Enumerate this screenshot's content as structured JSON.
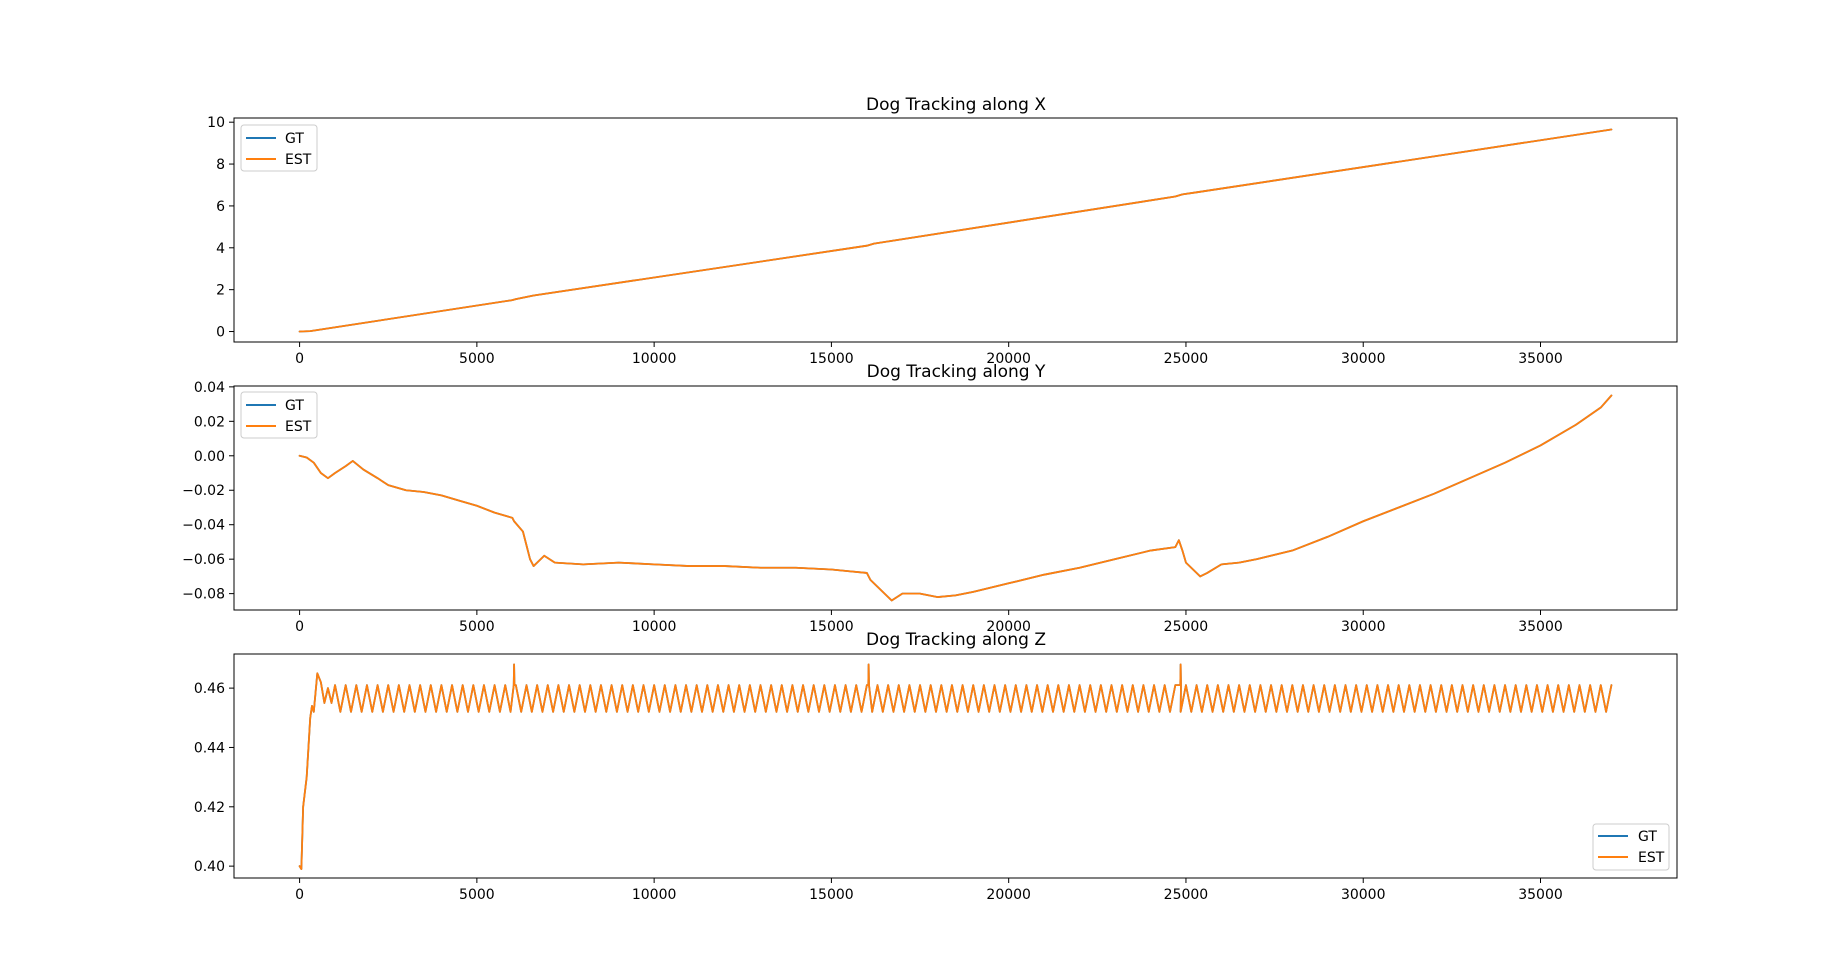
{
  "chart_data": [
    {
      "type": "line",
      "title": "Dog Tracking along X",
      "xlabel": "",
      "ylabel": "",
      "xlim": [
        -1850,
        38850
      ],
      "ylim": [
        -0.5,
        10.2
      ],
      "xticks": [
        0,
        5000,
        10000,
        15000,
        20000,
        25000,
        30000,
        35000
      ],
      "yticks": [
        0,
        2,
        4,
        6,
        8,
        10
      ],
      "grid": false,
      "legend": "upper-left",
      "series": [
        {
          "name": "GT",
          "color": "#1f77b4",
          "x": [
            0,
            300,
            6000,
            6100,
            6600,
            16000,
            16200,
            16700,
            24700,
            24900,
            25300,
            37000
          ],
          "y": [
            0.0,
            0.02,
            1.5,
            1.55,
            1.72,
            4.1,
            4.2,
            4.33,
            6.45,
            6.55,
            6.65,
            9.65
          ]
        },
        {
          "name": "EST",
          "color": "#ff7f0e",
          "x": [
            0,
            300,
            6000,
            6100,
            6600,
            16000,
            16200,
            16700,
            24700,
            24900,
            25300,
            37000
          ],
          "y": [
            0.0,
            0.02,
            1.5,
            1.55,
            1.72,
            4.1,
            4.2,
            4.33,
            6.45,
            6.55,
            6.65,
            9.65
          ]
        }
      ]
    },
    {
      "type": "line",
      "title": "Dog Tracking along Y",
      "xlabel": "",
      "ylabel": "",
      "xlim": [
        -1850,
        38850
      ],
      "ylim": [
        -0.0895,
        0.0405
      ],
      "xticks": [
        0,
        5000,
        10000,
        15000,
        20000,
        25000,
        30000,
        35000
      ],
      "yticks": [
        -0.08,
        -0.06,
        -0.04,
        -0.02,
        0.0,
        0.02,
        0.04
      ],
      "ytick_labels": [
        "−0.08",
        "−0.06",
        "−0.04",
        "−0.02",
        "0.00",
        "0.02",
        "0.04"
      ],
      "grid": false,
      "legend": "upper-left",
      "series": [
        {
          "name": "GT",
          "color": "#1f77b4",
          "x": [
            0,
            200,
            400,
            600,
            800,
            1000,
            1300,
            1500,
            1800,
            2200,
            2500,
            3000,
            3500,
            4000,
            4500,
            5000,
            5500,
            6000,
            6050,
            6300,
            6400,
            6500,
            6600,
            6700,
            6900,
            7200,
            8000,
            9000,
            10000,
            11000,
            12000,
            13000,
            14000,
            15000,
            15500,
            16000,
            16100,
            16300,
            16500,
            16700,
            17000,
            17500,
            18000,
            18500,
            19000,
            20000,
            21000,
            22000,
            23000,
            24000,
            24700,
            24800,
            24900,
            25000,
            25200,
            25400,
            25600,
            26000,
            26500,
            27000,
            28000,
            29000,
            30000,
            31000,
            32000,
            33000,
            34000,
            35000,
            36000,
            36700,
            37000
          ],
          "y": [
            0.0,
            -0.001,
            -0.004,
            -0.01,
            -0.013,
            -0.01,
            -0.006,
            -0.003,
            -0.008,
            -0.013,
            -0.017,
            -0.02,
            -0.021,
            -0.023,
            -0.026,
            -0.029,
            -0.033,
            -0.036,
            -0.038,
            -0.044,
            -0.052,
            -0.06,
            -0.064,
            -0.062,
            -0.058,
            -0.062,
            -0.063,
            -0.062,
            -0.063,
            -0.064,
            -0.064,
            -0.065,
            -0.065,
            -0.066,
            -0.067,
            -0.068,
            -0.072,
            -0.076,
            -0.08,
            -0.084,
            -0.08,
            -0.08,
            -0.082,
            -0.081,
            -0.079,
            -0.074,
            -0.069,
            -0.065,
            -0.06,
            -0.055,
            -0.053,
            -0.049,
            -0.055,
            -0.062,
            -0.066,
            -0.07,
            -0.068,
            -0.063,
            -0.062,
            -0.06,
            -0.055,
            -0.047,
            -0.038,
            -0.03,
            -0.022,
            -0.013,
            -0.004,
            0.006,
            0.018,
            0.028,
            0.035
          ]
        },
        {
          "name": "EST",
          "color": "#ff7f0e",
          "x": [
            0,
            200,
            400,
            600,
            800,
            1000,
            1300,
            1500,
            1800,
            2200,
            2500,
            3000,
            3500,
            4000,
            4500,
            5000,
            5500,
            6000,
            6050,
            6300,
            6400,
            6500,
            6600,
            6700,
            6900,
            7200,
            8000,
            9000,
            10000,
            11000,
            12000,
            13000,
            14000,
            15000,
            15500,
            16000,
            16100,
            16300,
            16500,
            16700,
            17000,
            17500,
            18000,
            18500,
            19000,
            20000,
            21000,
            22000,
            23000,
            24000,
            24700,
            24800,
            24900,
            25000,
            25200,
            25400,
            25600,
            26000,
            26500,
            27000,
            28000,
            29000,
            30000,
            31000,
            32000,
            33000,
            34000,
            35000,
            36000,
            36700,
            37000
          ],
          "y": [
            0.0,
            -0.001,
            -0.004,
            -0.01,
            -0.013,
            -0.01,
            -0.006,
            -0.003,
            -0.008,
            -0.013,
            -0.017,
            -0.02,
            -0.021,
            -0.023,
            -0.026,
            -0.029,
            -0.033,
            -0.036,
            -0.038,
            -0.044,
            -0.052,
            -0.06,
            -0.064,
            -0.062,
            -0.058,
            -0.062,
            -0.063,
            -0.062,
            -0.063,
            -0.064,
            -0.064,
            -0.065,
            -0.065,
            -0.066,
            -0.067,
            -0.068,
            -0.072,
            -0.076,
            -0.08,
            -0.084,
            -0.08,
            -0.08,
            -0.082,
            -0.081,
            -0.079,
            -0.074,
            -0.069,
            -0.065,
            -0.06,
            -0.055,
            -0.053,
            -0.049,
            -0.055,
            -0.062,
            -0.066,
            -0.07,
            -0.068,
            -0.063,
            -0.062,
            -0.06,
            -0.055,
            -0.047,
            -0.038,
            -0.03,
            -0.022,
            -0.013,
            -0.004,
            0.006,
            0.018,
            0.028,
            0.035
          ]
        }
      ]
    },
    {
      "type": "line",
      "title": "Dog Tracking along Z",
      "xlabel": "",
      "ylabel": "",
      "xlim": [
        -1850,
        38850
      ],
      "ylim": [
        0.396,
        0.4715
      ],
      "xticks": [
        0,
        5000,
        10000,
        15000,
        20000,
        25000,
        30000,
        35000
      ],
      "yticks": [
        0.4,
        0.42,
        0.44,
        0.46
      ],
      "ytick_labels": [
        "0.40",
        "0.42",
        "0.44",
        "0.46"
      ],
      "grid": false,
      "legend": "lower-right",
      "series": [
        {
          "name": "GT",
          "color": "#1f77b4",
          "x": [
            0,
            50,
            100,
            200,
            300,
            350,
            400,
            500,
            600,
            700,
            800,
            900,
            1000,
            37000
          ],
          "y": [
            0.4,
            0.399,
            0.42,
            0.43,
            0.45,
            0.454,
            0.452,
            0.465,
            0.462,
            0.455,
            0.46,
            0.455,
            0.461,
            0.459
          ],
          "oscillation": {
            "start": 1000,
            "end": 37000,
            "period": 300,
            "low": 0.452,
            "high": 0.461
          },
          "spikes": [
            {
              "x": 6050,
              "y": 0.468
            },
            {
              "x": 16050,
              "y": 0.468
            },
            {
              "x": 24850,
              "y": 0.468
            }
          ]
        },
        {
          "name": "EST",
          "color": "#ff7f0e",
          "x": [
            0,
            50,
            100,
            200,
            300,
            350,
            400,
            500,
            600,
            700,
            800,
            900,
            1000,
            37000
          ],
          "y": [
            0.4,
            0.399,
            0.42,
            0.43,
            0.45,
            0.454,
            0.452,
            0.465,
            0.462,
            0.455,
            0.46,
            0.455,
            0.461,
            0.459
          ],
          "oscillation": {
            "start": 1000,
            "end": 37000,
            "period": 300,
            "low": 0.452,
            "high": 0.461
          },
          "spikes": [
            {
              "x": 6050,
              "y": 0.468
            },
            {
              "x": 16050,
              "y": 0.468
            },
            {
              "x": 24850,
              "y": 0.468
            }
          ]
        }
      ]
    }
  ]
}
